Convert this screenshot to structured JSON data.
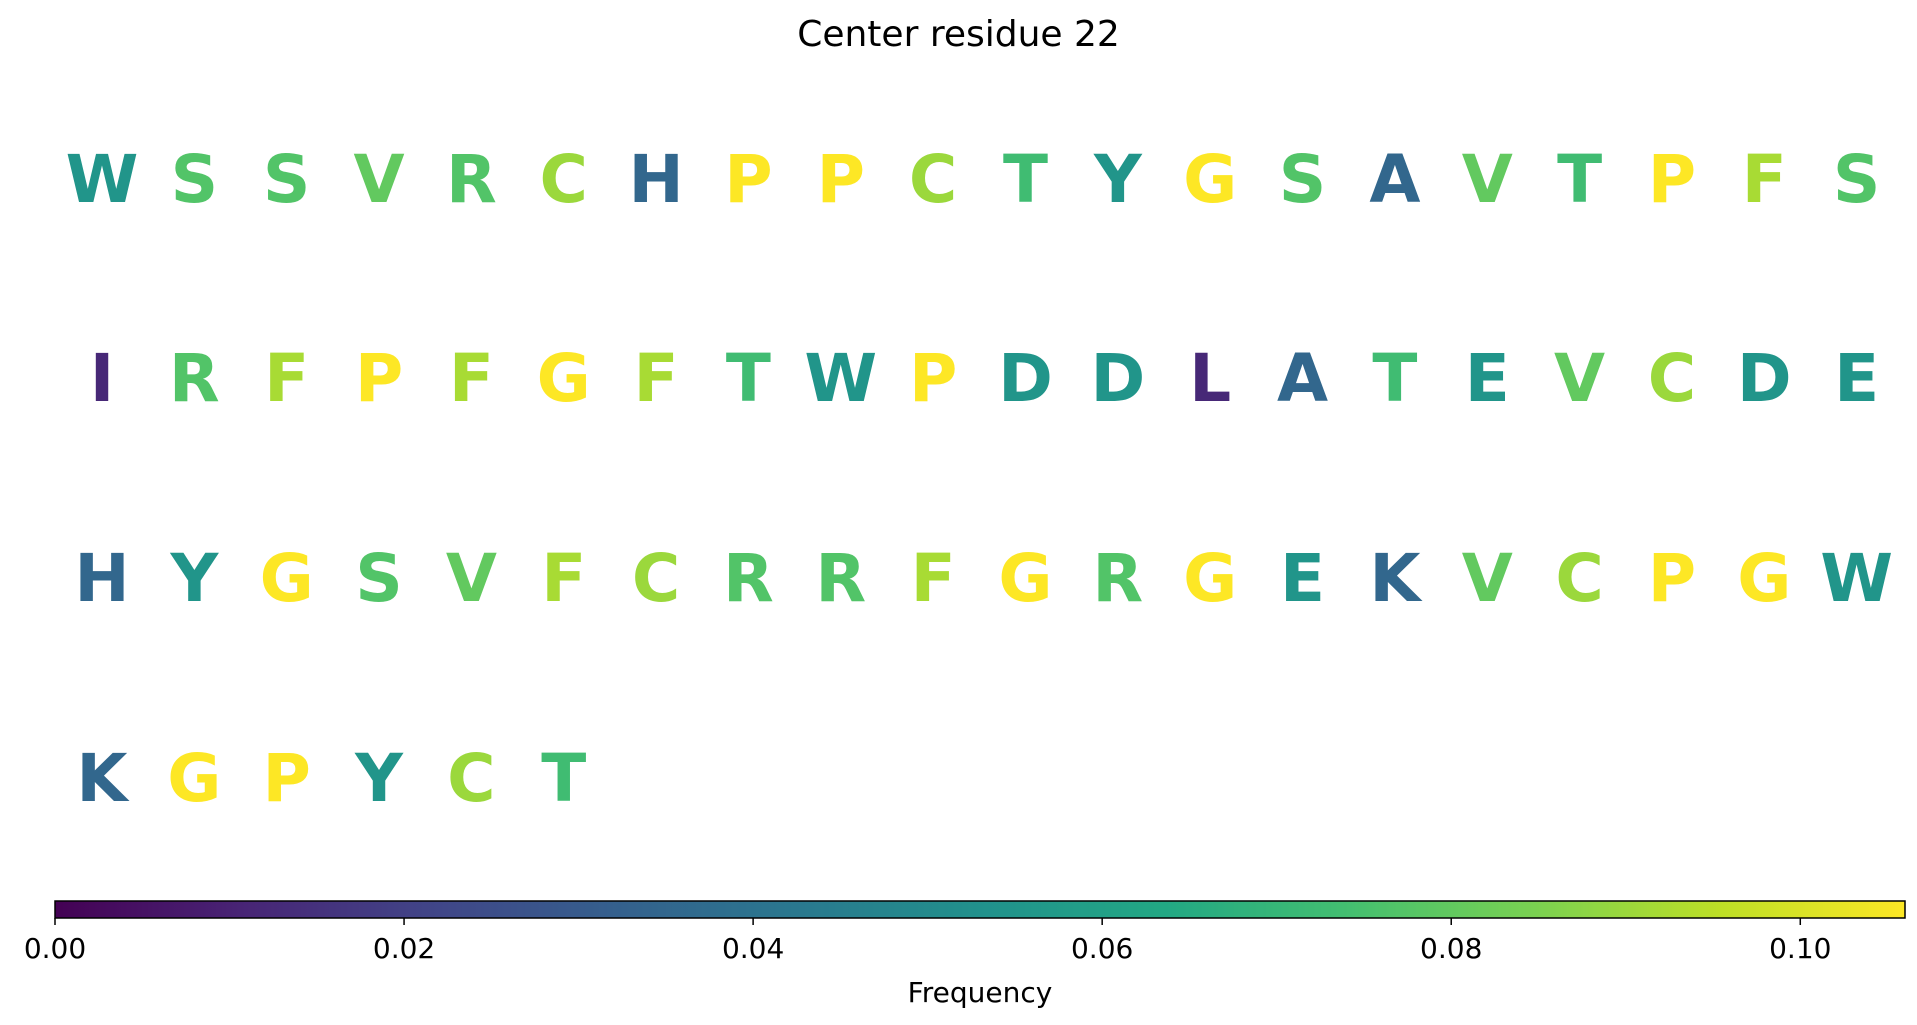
{
  "chart_data": {
    "type": "heatmap",
    "title": "Center residue 22",
    "rows": [
      [
        "W",
        "S",
        "S",
        "V",
        "R",
        "C",
        "H",
        "P",
        "P",
        "C",
        "T",
        "Y",
        "G",
        "S",
        "A",
        "V",
        "T",
        "P",
        "F",
        "S"
      ],
      [
        "I",
        "R",
        "F",
        "P",
        "F",
        "G",
        "F",
        "T",
        "W",
        "P",
        "D",
        "D",
        "L",
        "A",
        "T",
        "E",
        "V",
        "C",
        "D",
        "E"
      ],
      [
        "H",
        "Y",
        "G",
        "S",
        "V",
        "F",
        "C",
        "R",
        "R",
        "F",
        "G",
        "R",
        "G",
        "E",
        "K",
        "V",
        "C",
        "P",
        "G",
        "W"
      ],
      [
        "K",
        "G",
        "P",
        "Y",
        "C",
        "T"
      ]
    ],
    "frequencies": {
      "A": 0.035,
      "C": 0.09,
      "D": 0.055,
      "E": 0.055,
      "F": 0.092,
      "G": 0.106,
      "H": 0.035,
      "I": 0.012,
      "K": 0.035,
      "L": 0.012,
      "P": 0.106,
      "R": 0.077,
      "S": 0.077,
      "T": 0.073,
      "V": 0.08,
      "W": 0.055,
      "Y": 0.055
    },
    "colorbar": {
      "label": "Frequency",
      "range": [
        0,
        0.106
      ],
      "ticks": [
        "0.00",
        "0.02",
        "0.04",
        "0.06",
        "0.08",
        "0.10"
      ],
      "colormap": "viridis"
    }
  }
}
